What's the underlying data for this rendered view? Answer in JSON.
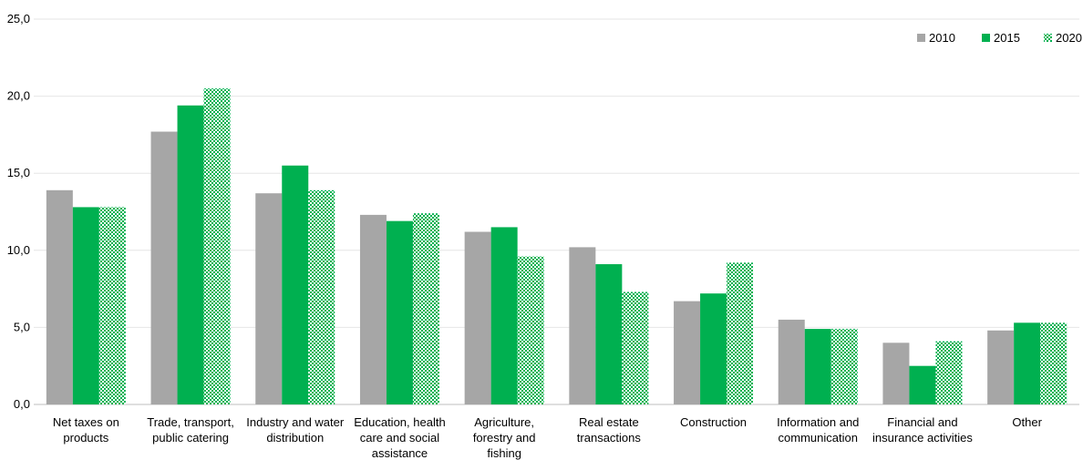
{
  "chart_data": {
    "type": "bar",
    "categories": [
      [
        "Net taxes on",
        "products"
      ],
      [
        "Trade, transport,",
        "public catering"
      ],
      [
        "Industry and water",
        "distribution"
      ],
      [
        "Education, health",
        "care and social",
        "assistance"
      ],
      [
        "Agriculture,",
        "forestry and",
        "fishing"
      ],
      [
        "Real estate",
        "transactions"
      ],
      [
        "Construction"
      ],
      [
        "Information and",
        "communication"
      ],
      [
        "Financial and",
        "insurance activities"
      ],
      [
        "Other"
      ]
    ],
    "series": [
      {
        "name": "2010",
        "color": "#a6a6a6",
        "pattern": "solid",
        "values": [
          13.9,
          17.7,
          13.7,
          12.3,
          11.2,
          10.2,
          6.7,
          5.5,
          4.0,
          4.8
        ]
      },
      {
        "name": "2015",
        "color": "#00b050",
        "pattern": "solid",
        "values": [
          12.8,
          19.4,
          15.5,
          11.9,
          11.5,
          9.1,
          7.2,
          4.9,
          2.5,
          5.3
        ]
      },
      {
        "name": "2020",
        "color": "#00b050",
        "pattern": "checker",
        "values": [
          12.8,
          20.5,
          13.9,
          12.4,
          9.6,
          7.3,
          9.2,
          4.9,
          4.1,
          5.3
        ]
      }
    ],
    "y_ticks": [
      "0,0",
      "5,0",
      "10,0",
      "15,0",
      "20,0",
      "25,0"
    ],
    "ylim": [
      0,
      25
    ],
    "grid": true,
    "legend_position": "top-right",
    "title": "",
    "xlabel": "",
    "ylabel": ""
  }
}
